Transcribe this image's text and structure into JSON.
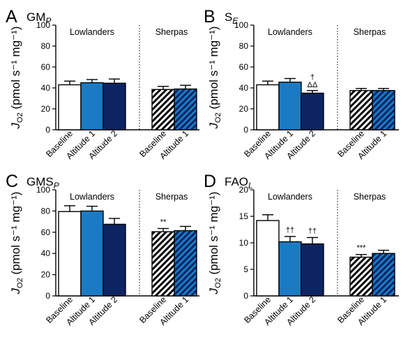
{
  "ylabel_main": "J",
  "ylabel_sub": "O2",
  "ylabel_units": " (pmol s⁻¹ mg⁻¹)",
  "styles": {
    "Baseline": {
      "fill": "#ffffff",
      "pattern": "none"
    },
    "Altitude 1": {
      "fill": "#1a7bc4",
      "pattern": "none"
    },
    "Altitude 2": {
      "fill": "#0c2462",
      "pattern": "none"
    },
    "Sherpa Baseline": {
      "fill": "#ffffff",
      "pattern": "hatch-black"
    },
    "Sherpa Altitude 1": {
      "fill": "#1a7bc4",
      "pattern": "hatch-navy"
    }
  },
  "chart_data": [
    {
      "type": "bar",
      "panel": "A",
      "title_main": "GM",
      "title_sub": "P",
      "ylim": [
        0,
        100
      ],
      "yticks": [
        0,
        20,
        40,
        60,
        80,
        100
      ],
      "groups": [
        {
          "label": "Lowlanders",
          "bars": [
            {
              "category": "Baseline",
              "style": "Baseline",
              "value": 43,
              "error": 3.5,
              "annotation": ""
            },
            {
              "category": "Altitude 1",
              "style": "Altitude 1",
              "value": 45,
              "error": 3,
              "annotation": ""
            },
            {
              "category": "Altitude 2",
              "style": "Altitude 2",
              "value": 44.5,
              "error": 4,
              "annotation": ""
            }
          ]
        },
        {
          "label": "Sherpas",
          "bars": [
            {
              "category": "Baseline",
              "style": "Sherpa Baseline",
              "value": 38.5,
              "error": 3,
              "annotation": ""
            },
            {
              "category": "Altitude 1",
              "style": "Sherpa Altitude 1",
              "value": 39,
              "error": 3.5,
              "annotation": ""
            }
          ]
        }
      ]
    },
    {
      "type": "bar",
      "panel": "B",
      "title_main": "S",
      "title_sub": "E",
      "ylim": [
        0,
        100
      ],
      "yticks": [
        0,
        20,
        40,
        60,
        80,
        100
      ],
      "groups": [
        {
          "label": "Lowlanders",
          "bars": [
            {
              "category": "Baseline",
              "style": "Baseline",
              "value": 43,
              "error": 3.5,
              "annotation": ""
            },
            {
              "category": "Altitude 1",
              "style": "Altitude 1",
              "value": 45.5,
              "error": 3.5,
              "annotation": ""
            },
            {
              "category": "Altitude 2",
              "style": "Altitude 2",
              "value": 35,
              "error": 2.5,
              "annotation": "† ΔΔ"
            }
          ]
        },
        {
          "label": "Sherpas",
          "bars": [
            {
              "category": "Baseline",
              "style": "Sherpa Baseline",
              "value": 37.5,
              "error": 2,
              "annotation": ""
            },
            {
              "category": "Altitude 1",
              "style": "Sherpa Altitude 1",
              "value": 37.5,
              "error": 2,
              "annotation": ""
            }
          ]
        }
      ]
    },
    {
      "type": "bar",
      "panel": "C",
      "title_main": "GMS",
      "title_sub": "P",
      "ylim": [
        0,
        100
      ],
      "yticks": [
        0,
        20,
        40,
        60,
        80,
        100
      ],
      "groups": [
        {
          "label": "Lowlanders",
          "bars": [
            {
              "category": "Baseline",
              "style": "Baseline",
              "value": 79.5,
              "error": 5.5,
              "annotation": ""
            },
            {
              "category": "Altitude 1",
              "style": "Altitude 1",
              "value": 80,
              "error": 4.5,
              "annotation": ""
            },
            {
              "category": "Altitude 2",
              "style": "Altitude 2",
              "value": 67.5,
              "error": 5.5,
              "annotation": ""
            }
          ]
        },
        {
          "label": "Sherpas",
          "bars": [
            {
              "category": "Baseline",
              "style": "Sherpa Baseline",
              "value": 60.5,
              "error": 3,
              "annotation": "**"
            },
            {
              "category": "Altitude 1",
              "style": "Sherpa Altitude 1",
              "value": 61.5,
              "error": 4,
              "annotation": ""
            }
          ]
        }
      ]
    },
    {
      "type": "bar",
      "panel": "D",
      "title_main": "FAO",
      "title_sub": "L",
      "ylim": [
        0,
        20
      ],
      "yticks": [
        0,
        5,
        10,
        15,
        20
      ],
      "groups": [
        {
          "label": "Lowlanders",
          "bars": [
            {
              "category": "Baseline",
              "style": "Baseline",
              "value": 14.2,
              "error": 1.1,
              "annotation": ""
            },
            {
              "category": "Altitude 1",
              "style": "Altitude 1",
              "value": 10.2,
              "error": 1,
              "annotation": "††"
            },
            {
              "category": "Altitude 2",
              "style": "Altitude 2",
              "value": 9.8,
              "error": 1.2,
              "annotation": "††"
            }
          ]
        },
        {
          "label": "Sherpas",
          "bars": [
            {
              "category": "Baseline",
              "style": "Sherpa Baseline",
              "value": 7.3,
              "error": 0.5,
              "annotation": "***"
            },
            {
              "category": "Altitude 1",
              "style": "Sherpa Altitude 1",
              "value": 8,
              "error": 0.6,
              "annotation": ""
            }
          ]
        }
      ]
    }
  ]
}
